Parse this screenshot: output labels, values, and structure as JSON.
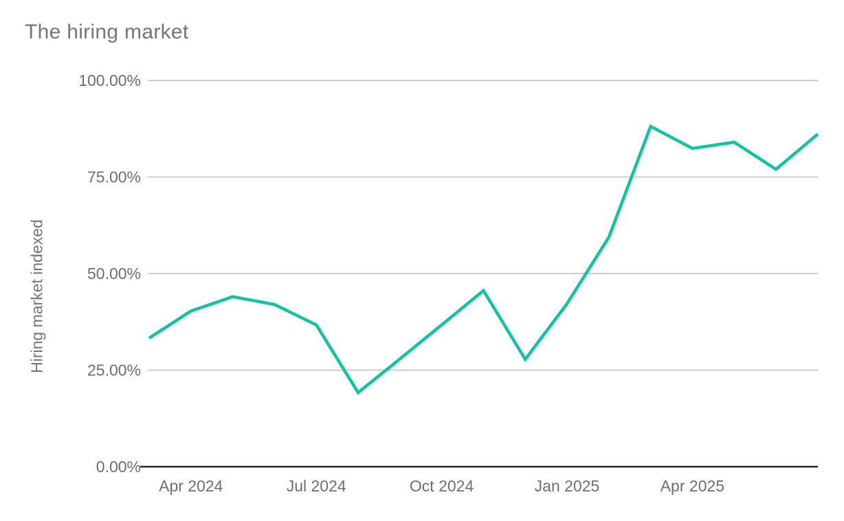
{
  "header": {
    "title": "The hiring market"
  },
  "chart_data": {
    "type": "line",
    "title": "The hiring market",
    "xlabel": "",
    "ylabel": "Hiring market indexed",
    "categories": [
      "Mar 2024",
      "Apr 2024",
      "May 2024",
      "Jun 2024",
      "Jul 2024",
      "Aug 2024",
      "Sep 2024",
      "Oct 2024",
      "Nov 2024",
      "Dec 2024",
      "Jan 2025",
      "Feb 2025",
      "Mar 2025",
      "Apr 2025",
      "May 2025",
      "Jun 2025",
      "Jul 2025"
    ],
    "series": [
      {
        "name": "Hiring market indexed",
        "values": [
          33.3,
          40.3,
          44.0,
          42.0,
          36.7,
          19.2,
          27.9,
          36.7,
          45.6,
          27.8,
          42.2,
          59.4,
          88.1,
          82.4,
          84.0,
          77.0,
          86.1
        ]
      }
    ],
    "ylim": [
      0,
      100
    ],
    "y_ticks": [
      0,
      25,
      50,
      75,
      100
    ],
    "y_tick_labels": [
      "0.00%",
      "25.00%",
      "50.00%",
      "75.00%",
      "100.00%"
    ],
    "x_tick_indices": [
      1,
      4,
      7,
      10,
      13
    ],
    "x_tick_labels": [
      "Apr 2024",
      "Jul 2024",
      "Oct 2024",
      "Jan 2025",
      "Apr 2025"
    ],
    "grid": "horizontal",
    "legend": "none",
    "colors": {
      "line": "#0fc4a2",
      "gridline": "#cccccc",
      "axis_line": "#212121",
      "tick_label": "#6e6e6e",
      "title": "#757575"
    }
  }
}
